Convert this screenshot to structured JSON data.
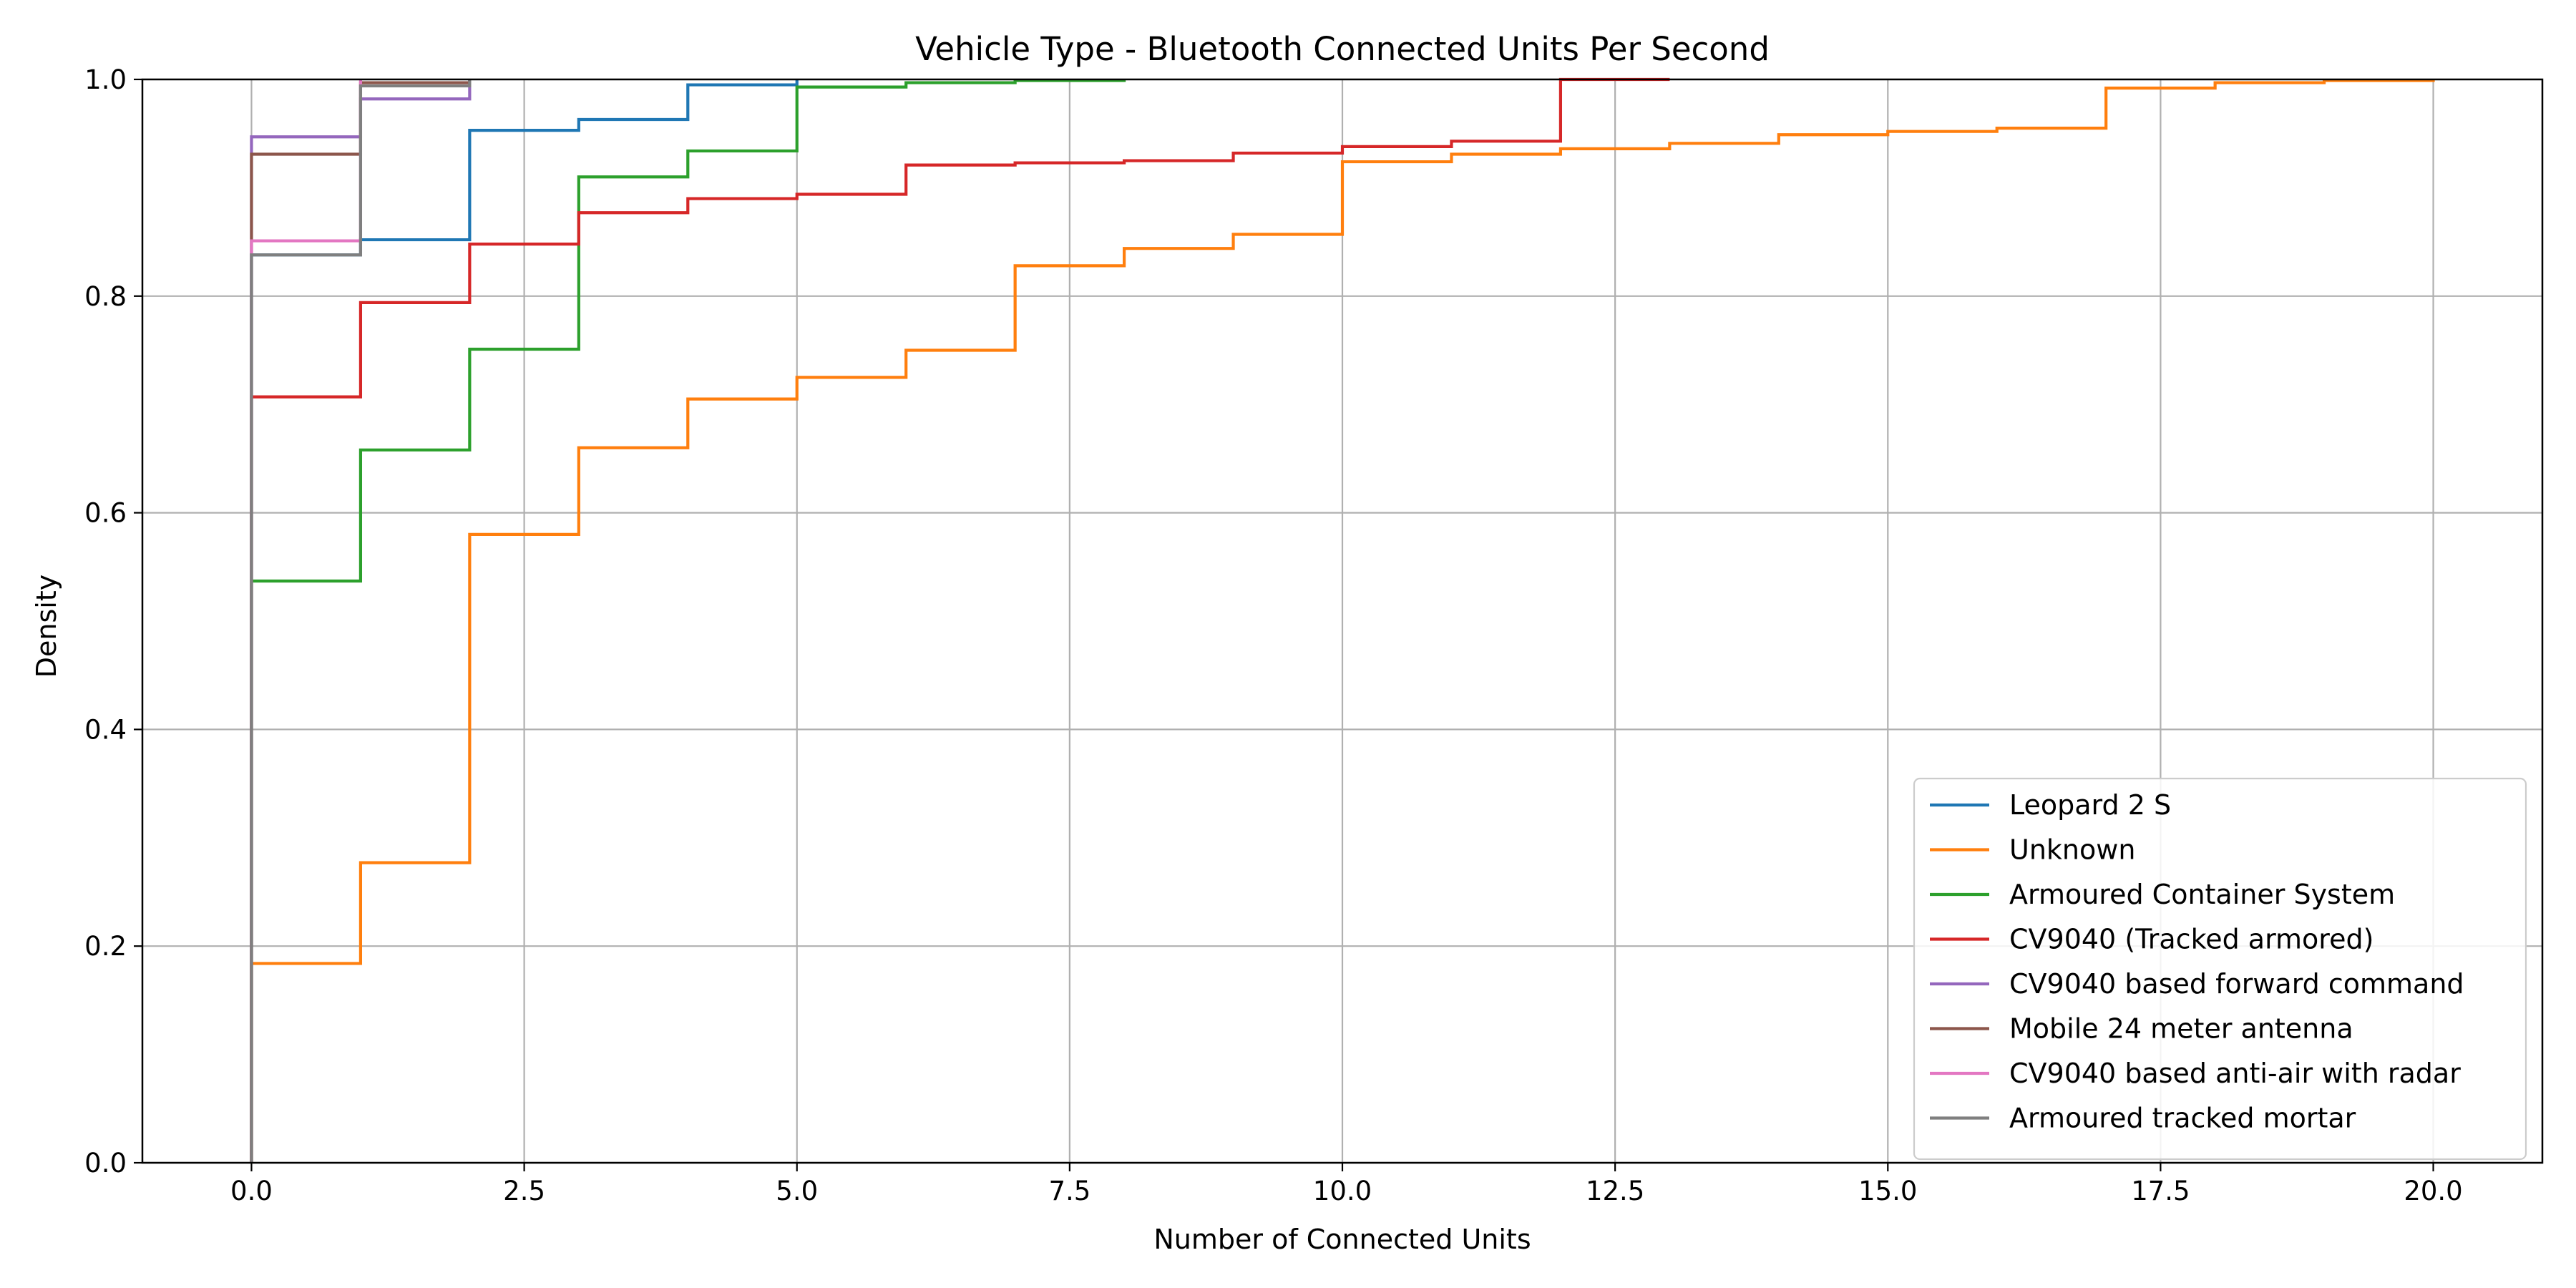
{
  "chart_data": {
    "type": "line",
    "step": true,
    "title": "Vehicle Type - Bluetooth Connected Units Per Second",
    "xlabel": "Number of Connected Units",
    "ylabel": "Density",
    "xlim": [
      -1,
      21
    ],
    "ylim": [
      0,
      1
    ],
    "xticks": [
      0,
      2.5,
      5,
      7.5,
      10,
      12.5,
      15,
      17.5,
      20
    ],
    "xtick_labels": [
      "0.0",
      "2.5",
      "5.0",
      "7.5",
      "10.0",
      "12.5",
      "15.0",
      "17.5",
      "20.0"
    ],
    "yticks": [
      0,
      0.2,
      0.4,
      0.6,
      0.8,
      1.0
    ],
    "ytick_labels": [
      "0.0",
      "0.2",
      "0.4",
      "0.6",
      "0.8",
      "1.0"
    ],
    "grid": true,
    "legend_position": "lower-right",
    "series": [
      {
        "name": "Leopard 2 S",
        "color": "#1f77b4",
        "x": [
          0,
          1,
          2,
          3,
          4,
          5
        ],
        "y": [
          0.838,
          0.852,
          0.953,
          0.963,
          0.995,
          1.0
        ]
      },
      {
        "name": "Unknown",
        "color": "#ff7f0e",
        "x": [
          0,
          1,
          2,
          3,
          4,
          5,
          6,
          7,
          8,
          9,
          10,
          11,
          12,
          13,
          14,
          15,
          16,
          17,
          18,
          19,
          20
        ],
        "y": [
          0.184,
          0.277,
          0.58,
          0.66,
          0.705,
          0.725,
          0.75,
          0.828,
          0.844,
          0.857,
          0.924,
          0.931,
          0.936,
          0.941,
          0.949,
          0.952,
          0.955,
          0.992,
          0.997,
          0.999,
          1.0
        ]
      },
      {
        "name": "Armoured Container System",
        "color": "#2ca02c",
        "x": [
          0,
          1,
          2,
          3,
          4,
          5,
          6,
          7,
          8
        ],
        "y": [
          0.537,
          0.658,
          0.751,
          0.91,
          0.934,
          0.993,
          0.997,
          0.999,
          1.0
        ]
      },
      {
        "name": "CV9040 (Tracked armored)",
        "color": "#d62728",
        "x": [
          0,
          1,
          2,
          3,
          4,
          5,
          6,
          7,
          8,
          9,
          10,
          11,
          12,
          13
        ],
        "y": [
          0.707,
          0.794,
          0.848,
          0.877,
          0.89,
          0.894,
          0.921,
          0.923,
          0.925,
          0.932,
          0.938,
          0.943,
          1.0,
          1.0
        ]
      },
      {
        "name": "CV9040 based forward command",
        "color": "#9467bd",
        "x": [
          0,
          1,
          2
        ],
        "y": [
          0.947,
          0.982,
          1.0
        ]
      },
      {
        "name": "Mobile 24 meter antenna",
        "color": "#8c564b",
        "x": [
          0,
          1,
          2
        ],
        "y": [
          0.931,
          0.997,
          1.0
        ]
      },
      {
        "name": "CV9040 based anti-air with radar",
        "color": "#e377c2",
        "x": [
          0,
          1
        ],
        "y": [
          0.851,
          1.0
        ]
      },
      {
        "name": "Armoured tracked mortar",
        "color": "#7f7f7f",
        "x": [
          0,
          1,
          2
        ],
        "y": [
          0.838,
          0.994,
          1.0
        ]
      }
    ]
  }
}
